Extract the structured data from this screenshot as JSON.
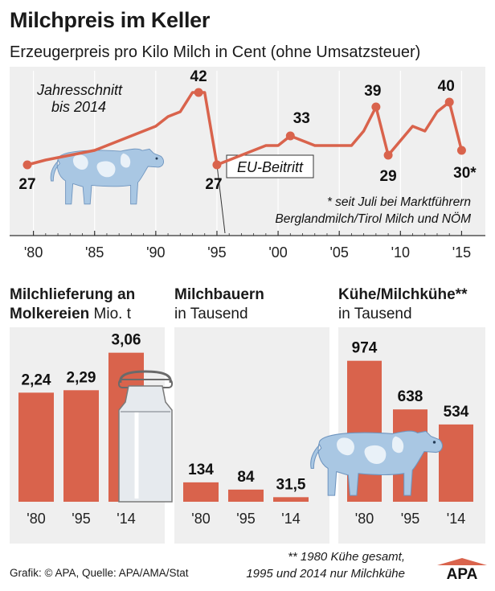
{
  "title": "Milchpreis im Keller",
  "subtitle": "Erzeugerpreis pro Kilo Milch in Cent (ohne Umsatzsteuer)",
  "colors": {
    "accent": "#d9634c",
    "cow": "#a9c7e3",
    "panel_bg": "#efefef",
    "grid": "#c8c8c8"
  },
  "chart_data": [
    {
      "type": "line",
      "title": "Erzeugerpreis pro Kilo Milch in Cent (ohne Umsatzsteuer)",
      "x_tick_labels": [
        "'80",
        "'85",
        "'90",
        "'95",
        "'00",
        "'05",
        "'10",
        "'15"
      ],
      "x_ticks": [
        1980,
        1985,
        1990,
        1995,
        2000,
        2005,
        2010,
        2015
      ],
      "xlim": [
        1979.5,
        2015.3
      ],
      "ylim": [
        20,
        45
      ],
      "series": [
        {
          "name": "Jahresschnitt bis 2014",
          "x": [
            1979.5,
            1981,
            1983,
            1985,
            1986,
            1987,
            1988,
            1989,
            1990,
            1991,
            1992,
            1993,
            1994,
            1995,
            1996,
            1997,
            1998,
            1999,
            2000,
            2001,
            2002,
            2003,
            2004,
            2005,
            2006,
            2007,
            2008,
            2009,
            2010,
            2011,
            2012,
            2013,
            2014,
            2015
          ],
          "y": [
            27,
            28,
            29,
            30,
            31,
            32,
            33,
            34,
            35,
            37,
            38,
            42,
            42,
            27,
            28,
            29,
            30,
            31,
            31,
            33,
            32,
            31,
            31,
            31,
            31,
            34,
            39,
            29,
            32,
            35,
            34,
            38,
            40,
            30
          ]
        }
      ],
      "point_labels": [
        {
          "x": 1979.5,
          "y": 27,
          "text": "27"
        },
        {
          "x": 1993.5,
          "y": 42,
          "text": "42"
        },
        {
          "x": 1995,
          "y": 27,
          "text": "27"
        },
        {
          "x": 2001,
          "y": 33,
          "text": "33"
        },
        {
          "x": 2008,
          "y": 39,
          "text": "39"
        },
        {
          "x": 2009,
          "y": 29,
          "text": "29"
        },
        {
          "x": 2014,
          "y": 40,
          "text": "40"
        },
        {
          "x": 2015,
          "y": 30,
          "text": "30*"
        }
      ],
      "annotation_series_label": [
        "Jahresschnitt",
        "bis 2014"
      ],
      "annotation_eu": "EU-Beitritt",
      "footnote": [
        "* seit Juli bei Marktführern",
        "Berglandmilch/Tirol Milch und NÖM"
      ]
    },
    {
      "type": "bar",
      "title": [
        "Milchlieferung an",
        "Molkereien",
        "Mio. t"
      ],
      "categories": [
        "'80",
        "'95",
        "'14"
      ],
      "values": [
        2.24,
        2.29,
        3.06
      ],
      "labels": [
        "2,24",
        "2,29",
        "3,06"
      ],
      "ylim": [
        0,
        3.5
      ]
    },
    {
      "type": "bar",
      "title": [
        "Milchbauern",
        "in Tausend"
      ],
      "categories": [
        "'80",
        "'95",
        "'14"
      ],
      "values": [
        134,
        84,
        31.5
      ],
      "labels": [
        "134",
        "84",
        "31,5"
      ],
      "ylim": [
        0,
        1000
      ]
    },
    {
      "type": "bar",
      "title": [
        "Kühe/Milchkühe**",
        "in Tausend"
      ],
      "categories": [
        "'80",
        "'95",
        "'14"
      ],
      "values": [
        974,
        638,
        534
      ],
      "labels": [
        "974",
        "638",
        "534"
      ],
      "ylim": [
        0,
        1000
      ]
    }
  ],
  "footnote2": [
    "** 1980 Kühe gesamt,",
    "1995 und 2014 nur Milchkühe"
  ],
  "credit": "Grafik: © APA, Quelle: APA/AMA/Stat",
  "logo": "APA"
}
